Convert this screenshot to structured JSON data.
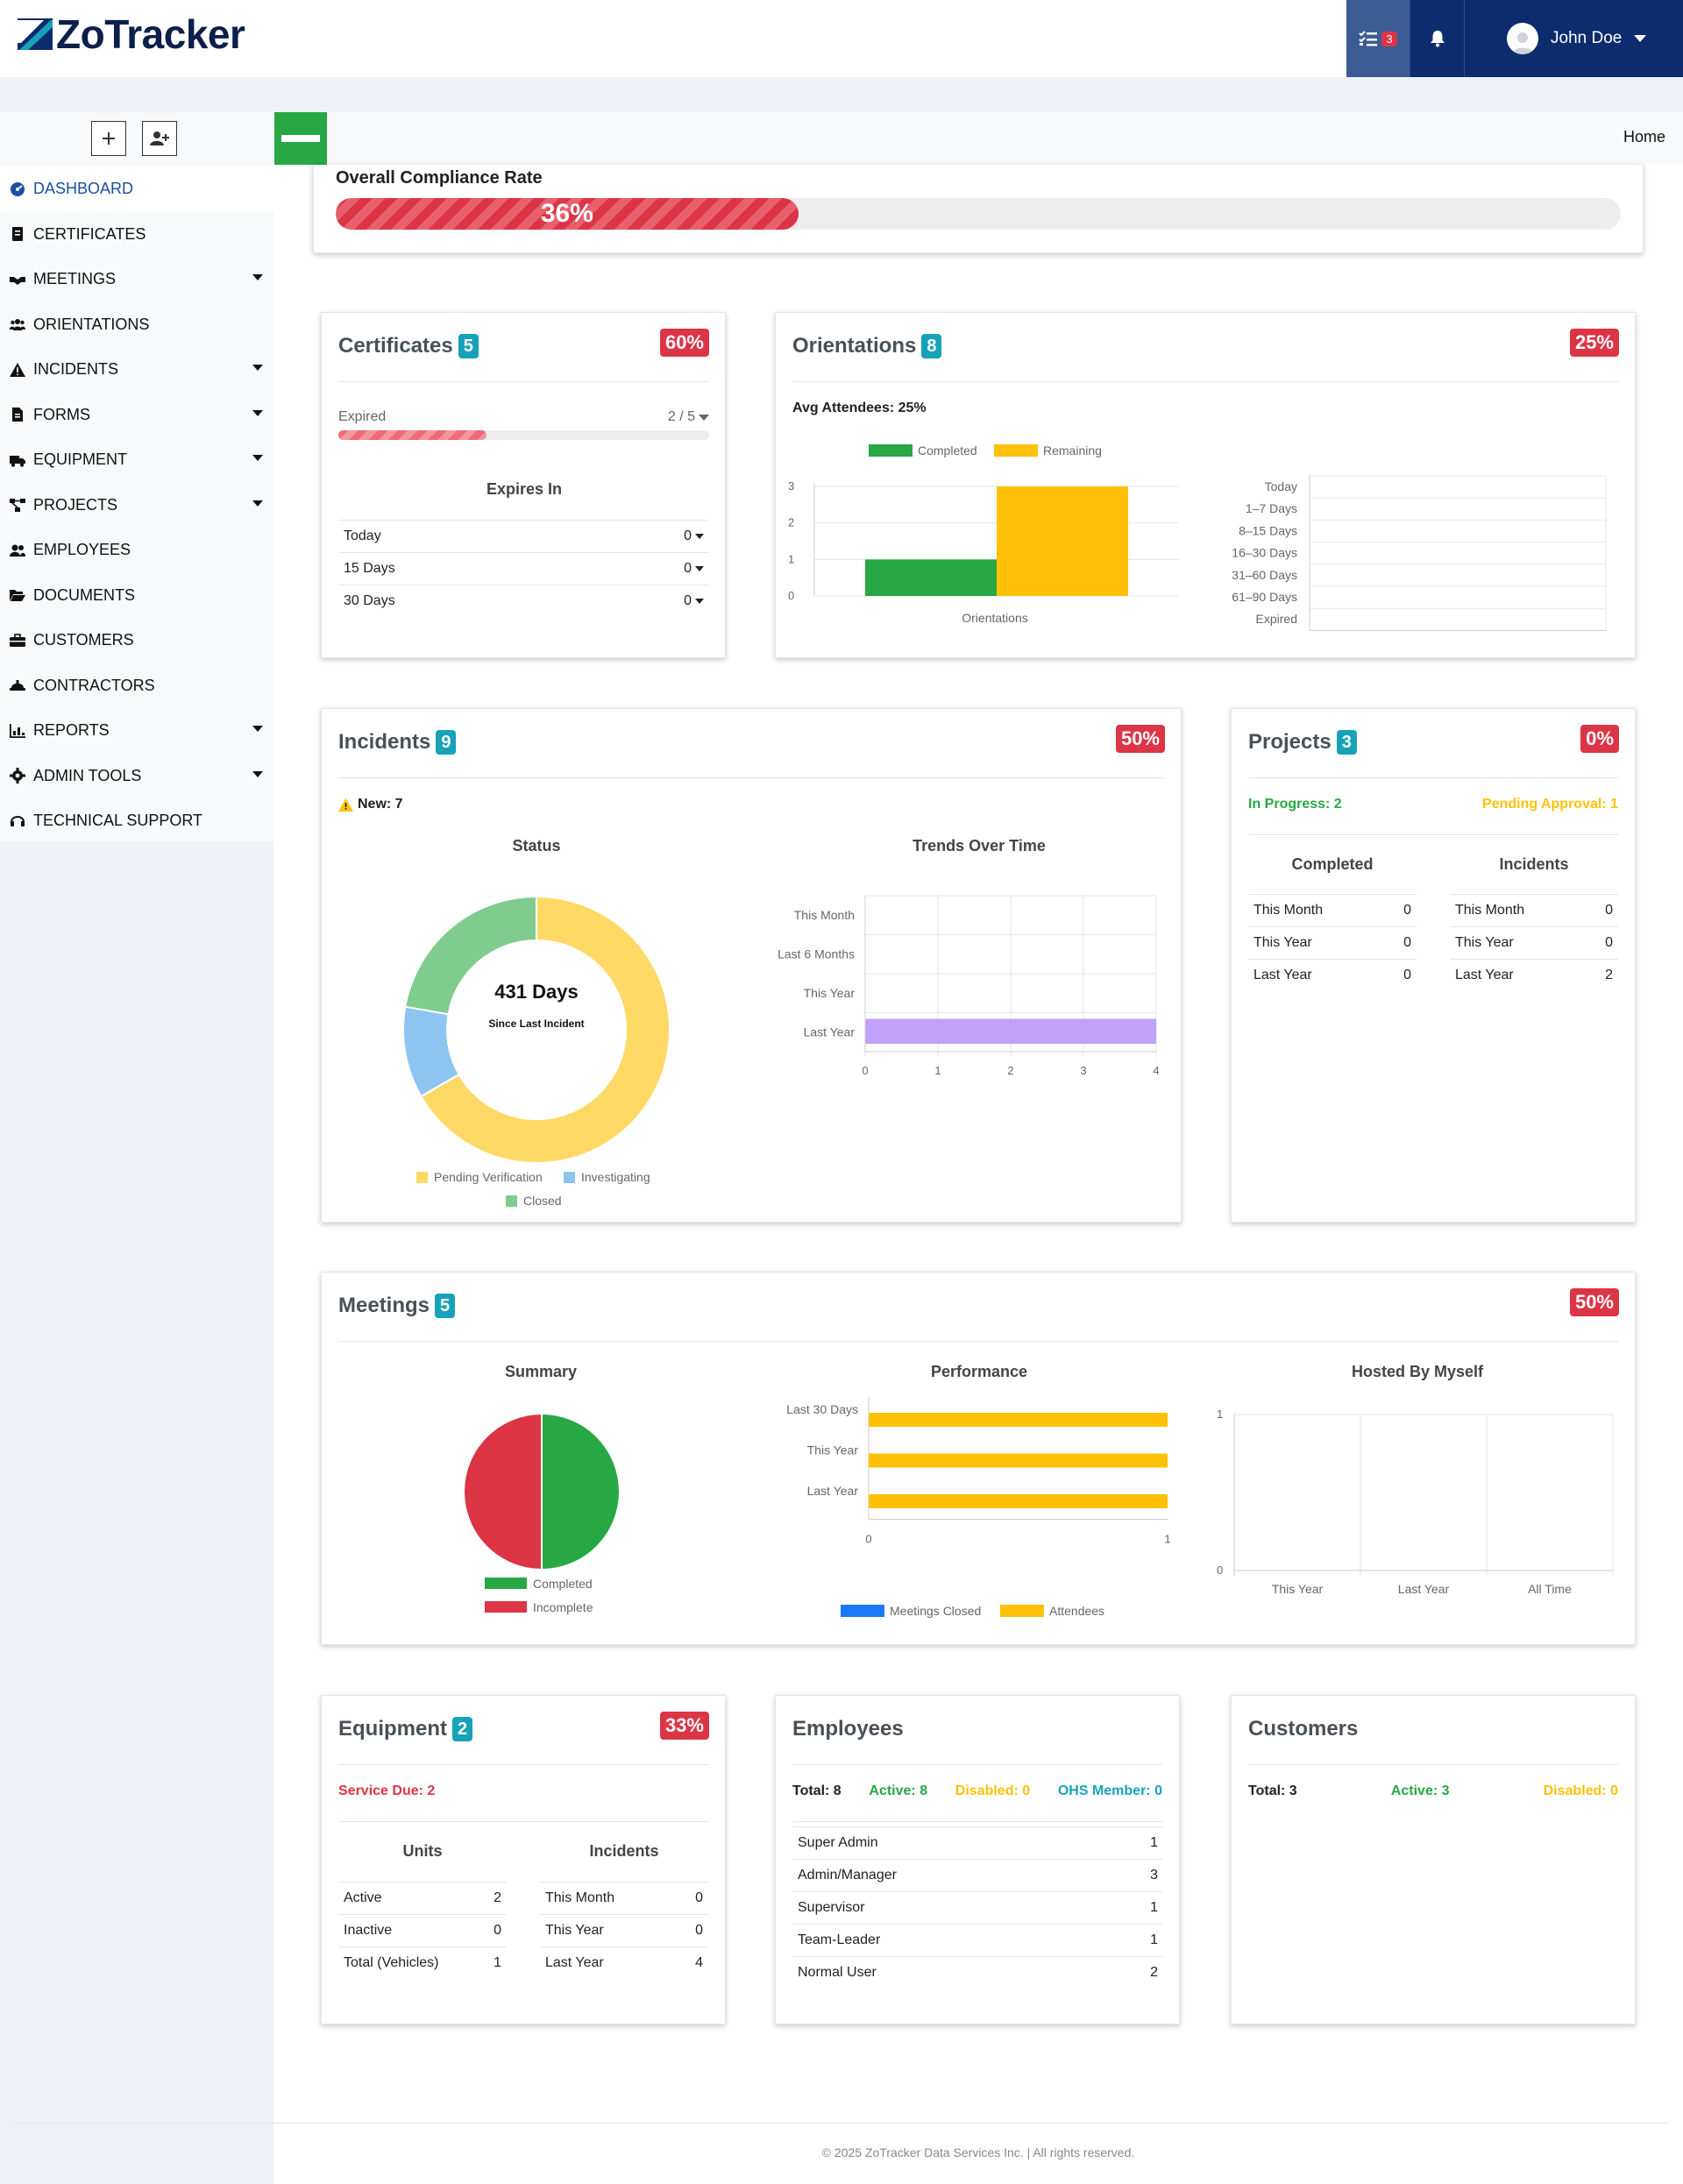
{
  "app": {
    "name": "ZoTracker",
    "brand_color": "#0c2c6e",
    "accent_color": "#28a745"
  },
  "topbar": {
    "tasks_icon": "tasks-icon",
    "tasks_badge": "3",
    "bell_icon": "bell-icon",
    "user_name": "John Doe"
  },
  "breadcrumb": {
    "home": "Home"
  },
  "sidebar": {
    "items": [
      {
        "label": "DASHBOARD",
        "icon": "dashboard-icon",
        "dropdown": false,
        "active": true
      },
      {
        "label": "CERTIFICATES",
        "icon": "certificate-icon",
        "dropdown": false
      },
      {
        "label": "MEETINGS",
        "icon": "handshake-icon",
        "dropdown": true
      },
      {
        "label": "ORIENTATIONS",
        "icon": "users-icon",
        "dropdown": false
      },
      {
        "label": "INCIDENTS",
        "icon": "warning-icon",
        "dropdown": true
      },
      {
        "label": "FORMS",
        "icon": "file-icon",
        "dropdown": true
      },
      {
        "label": "EQUIPMENT",
        "icon": "truck-icon",
        "dropdown": true
      },
      {
        "label": "PROJECTS",
        "icon": "project-diagram-icon",
        "dropdown": true
      },
      {
        "label": "EMPLOYEES",
        "icon": "user-friends-icon",
        "dropdown": false
      },
      {
        "label": "DOCUMENTS",
        "icon": "folder-open-icon",
        "dropdown": false
      },
      {
        "label": "CUSTOMERS",
        "icon": "briefcase-icon",
        "dropdown": false
      },
      {
        "label": "CONTRACTORS",
        "icon": "hard-hat-icon",
        "dropdown": false
      },
      {
        "label": "REPORTS",
        "icon": "chart-icon",
        "dropdown": true
      },
      {
        "label": "ADMIN TOOLS",
        "icon": "gear-icon",
        "dropdown": true
      },
      {
        "label": "TECHNICAL SUPPORT",
        "icon": "headset-icon",
        "dropdown": false
      }
    ]
  },
  "compliance": {
    "title": "Overall Compliance Rate",
    "value_label": "36%",
    "value": 0.36,
    "bar_color": "#dc3545"
  },
  "certificates": {
    "title": "Certificates",
    "count": "5",
    "percent": "60%",
    "expired_label": "Expired",
    "expired_value": "2 / 5",
    "expired_fraction": 0.4,
    "expires_in_title": "Expires In",
    "rows": [
      {
        "label": "Today",
        "value": "0"
      },
      {
        "label": "15 Days",
        "value": "0"
      },
      {
        "label": "30 Days",
        "value": "0"
      }
    ]
  },
  "orientations": {
    "title": "Orientations",
    "count": "8",
    "percent": "25%",
    "avg_attendees": "Avg Attendees: 25%"
  },
  "incidents": {
    "title": "Incidents",
    "count": "9",
    "percent": "50%",
    "new_label": "New: 7",
    "status_title": "Status",
    "trends_title": "Trends Over Time",
    "donut_main": "431 Days",
    "donut_sub": "Since Last Incident"
  },
  "projects": {
    "title": "Projects",
    "count": "3",
    "percent": "0%",
    "in_progress": "In Progress: 2",
    "pending": "Pending Approval: 1",
    "completed_title": "Completed",
    "incidents_title": "Incidents",
    "completed_rows": [
      {
        "label": "This Month",
        "value": "0"
      },
      {
        "label": "This Year",
        "value": "0"
      },
      {
        "label": "Last Year",
        "value": "0"
      }
    ],
    "incident_rows": [
      {
        "label": "This Month",
        "value": "0"
      },
      {
        "label": "This Year",
        "value": "0"
      },
      {
        "label": "Last Year",
        "value": "2"
      }
    ]
  },
  "meetings": {
    "title": "Meetings",
    "count": "5",
    "percent": "50%",
    "summary_title": "Summary",
    "performance_title": "Performance",
    "hosted_title": "Hosted By Myself"
  },
  "equipment": {
    "title": "Equipment",
    "count": "2",
    "percent": "33%",
    "service_due": "Service Due: 2",
    "units_title": "Units",
    "incidents_title": "Incidents",
    "unit_rows": [
      {
        "label": "Active",
        "value": "2"
      },
      {
        "label": "Inactive",
        "value": "0"
      },
      {
        "label": "Total (Vehicles)",
        "value": "1"
      }
    ],
    "incident_rows": [
      {
        "label": "This Month",
        "value": "0"
      },
      {
        "label": "This Year",
        "value": "0"
      },
      {
        "label": "Last Year",
        "value": "4"
      }
    ]
  },
  "employees": {
    "title": "Employees",
    "total": "Total: 8",
    "active": "Active: 8",
    "disabled": "Disabled: 0",
    "ohs": "OHS Member: 0",
    "rows": [
      {
        "label": "Super Admin",
        "value": "1"
      },
      {
        "label": "Admin/Manager",
        "value": "3"
      },
      {
        "label": "Supervisor",
        "value": "1"
      },
      {
        "label": "Team-Leader",
        "value": "1"
      },
      {
        "label": "Normal User",
        "value": "2"
      }
    ]
  },
  "customers": {
    "title": "Customers",
    "total": "Total: 3",
    "active": "Active: 3",
    "disabled": "Disabled: 0"
  },
  "footer": {
    "text": "© 2025 ZoTracker Data Services Inc. | All rights reserved."
  },
  "chart_data": [
    {
      "id": "orientations-bar",
      "type": "bar",
      "categories": [
        "Orientations"
      ],
      "series": [
        {
          "name": "Completed",
          "values": [
            1
          ],
          "color": "#28a745"
        },
        {
          "name": "Remaining",
          "values": [
            3
          ],
          "color": "#ffc107"
        }
      ],
      "ylim": [
        0,
        3
      ],
      "yticks": [
        "0",
        "1",
        "2",
        "3"
      ],
      "xlabel": "Orientations",
      "legend": "top"
    },
    {
      "id": "orientations-range",
      "type": "bar",
      "orientation": "horizontal",
      "categories": [
        "Today",
        "1–7 Days",
        "8–15 Days",
        "16–30 Days",
        "31–60 Days",
        "61–90 Days",
        "Expired"
      ],
      "values": [
        0,
        0,
        0,
        0,
        0,
        0,
        0
      ],
      "xlim": [
        0,
        1
      ],
      "xticks": [
        "0",
        "1"
      ]
    },
    {
      "id": "incidents-status",
      "type": "pie",
      "donut": true,
      "labels": [
        "Pending Verification",
        "Investigating",
        "Closed"
      ],
      "values": [
        6,
        1,
        2
      ],
      "colors": [
        "#ffd966",
        "#8ec5f0",
        "#80cc8f"
      ],
      "legend": "bottom"
    },
    {
      "id": "incidents-trends",
      "type": "bar",
      "orientation": "horizontal",
      "categories": [
        "This Month",
        "Last 6 Months",
        "This Year",
        "Last Year"
      ],
      "values": [
        0,
        0,
        0,
        4
      ],
      "color": "#c0a0f8",
      "xlim": [
        0,
        4
      ],
      "xticks": [
        "0",
        "1",
        "2",
        "3",
        "4"
      ]
    },
    {
      "id": "meetings-summary",
      "type": "pie",
      "labels": [
        "Completed",
        "Incomplete"
      ],
      "values": [
        1,
        1
      ],
      "colors": [
        "#28a745",
        "#dc3545"
      ],
      "legend": "bottom"
    },
    {
      "id": "meetings-performance",
      "type": "bar",
      "orientation": "horizontal",
      "categories": [
        "Last 30 Days",
        "This Year",
        "Last Year"
      ],
      "series": [
        {
          "name": "Meetings Closed",
          "values": [
            0,
            0,
            0
          ],
          "color": "#1a7af8"
        },
        {
          "name": "Attendees",
          "values": [
            1,
            1,
            1
          ],
          "color": "#ffc107"
        }
      ],
      "xlim": [
        0,
        1
      ],
      "xticks": [
        "0",
        "1"
      ],
      "legend": "bottom"
    },
    {
      "id": "meetings-hosted",
      "type": "bar",
      "categories": [
        "This Year",
        "Last Year",
        "All Time"
      ],
      "values": [
        0,
        0,
        0
      ],
      "ylim": [
        0,
        1
      ],
      "yticks": [
        "0",
        "1"
      ]
    }
  ]
}
